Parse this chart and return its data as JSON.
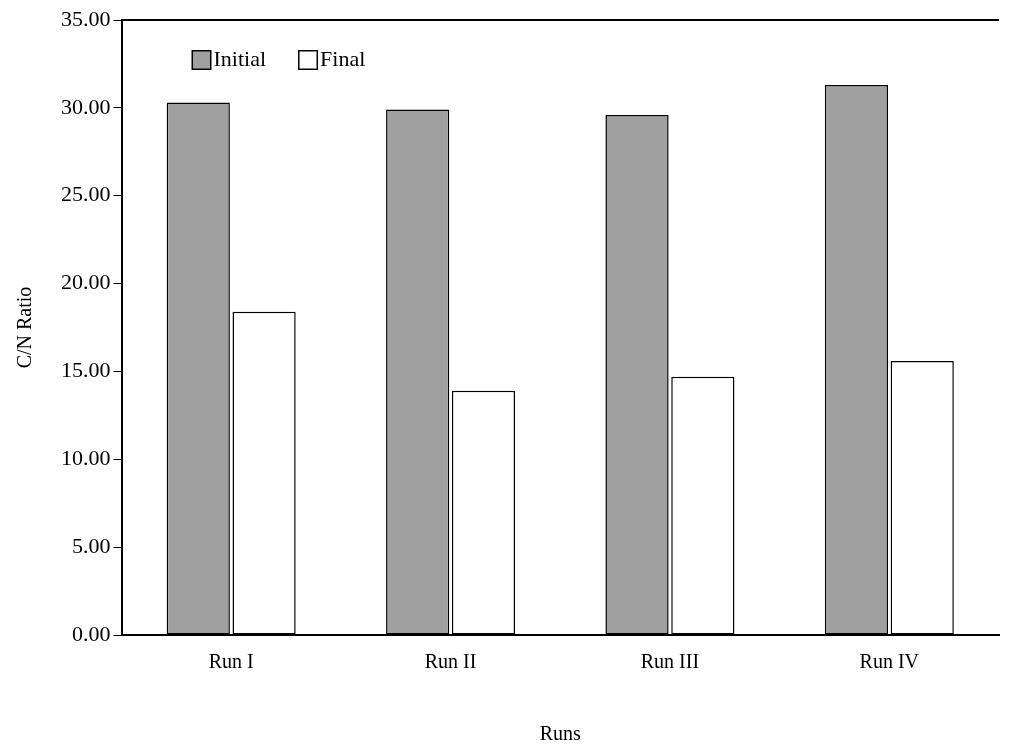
{
  "chart_data": {
    "type": "bar",
    "xlabel": "Runs",
    "ylabel": "C/N Ratio",
    "categories": [
      "Run I",
      "Run II",
      "Run III",
      "Run IV"
    ],
    "series": [
      {
        "name": "Initial",
        "color": "#a0a0a0",
        "values": [
          30.3,
          29.9,
          29.6,
          31.3
        ]
      },
      {
        "name": "Final",
        "color": "#ffffff",
        "values": [
          18.4,
          13.9,
          14.7,
          15.6
        ]
      }
    ],
    "ylim": [
      0,
      35
    ],
    "yticks": [
      {
        "value": 0,
        "label": "0.00"
      },
      {
        "value": 5,
        "label": "5.00"
      },
      {
        "value": 10,
        "label": "10.00"
      },
      {
        "value": 15,
        "label": "15.00"
      },
      {
        "value": 20,
        "label": "20.00"
      },
      {
        "value": 25,
        "label": "25.00"
      },
      {
        "value": 30,
        "label": "30.00"
      },
      {
        "value": 35,
        "label": "35.00"
      }
    ],
    "grid": false,
    "legend": "top left"
  }
}
